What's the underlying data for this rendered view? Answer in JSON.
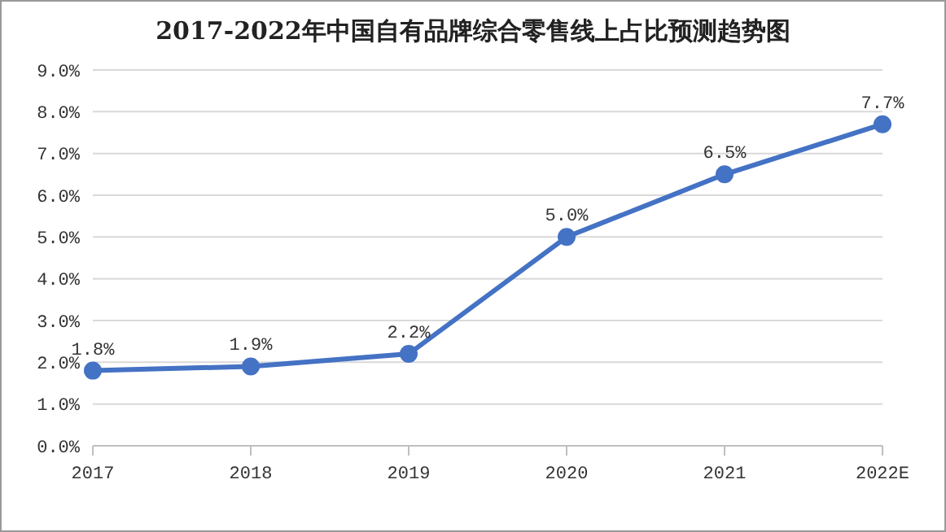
{
  "chart_data": {
    "type": "line",
    "title": "2017-2022年中国自有品牌综合零售线上占比预测趋势图",
    "categories": [
      "2017",
      "2018",
      "2019",
      "2020",
      "2021",
      "2022E"
    ],
    "series": [
      {
        "color": "#4472c4",
        "values": [
          1.8,
          1.9,
          2.2,
          5.0,
          6.5,
          7.7
        ],
        "value_labels": [
          "1.8%",
          "1.9%",
          "2.2%",
          "5.0%",
          "6.5%",
          "7.7%"
        ]
      }
    ],
    "ylim": [
      0,
      9
    ],
    "yticks": [
      {
        "value": 0,
        "label": "0.0%"
      },
      {
        "value": 1,
        "label": "1.0%"
      },
      {
        "value": 2,
        "label": "2.0%"
      },
      {
        "value": 3,
        "label": "3.0%"
      },
      {
        "value": 4,
        "label": "4.0%"
      },
      {
        "value": 5,
        "label": "5.0%"
      },
      {
        "value": 6,
        "label": "6.0%"
      },
      {
        "value": 7,
        "label": "7.0%"
      },
      {
        "value": 8,
        "label": "8.0%"
      },
      {
        "value": 9,
        "label": "9.0%"
      }
    ],
    "grid": "y",
    "marker": "circle",
    "line_style": "solid"
  }
}
